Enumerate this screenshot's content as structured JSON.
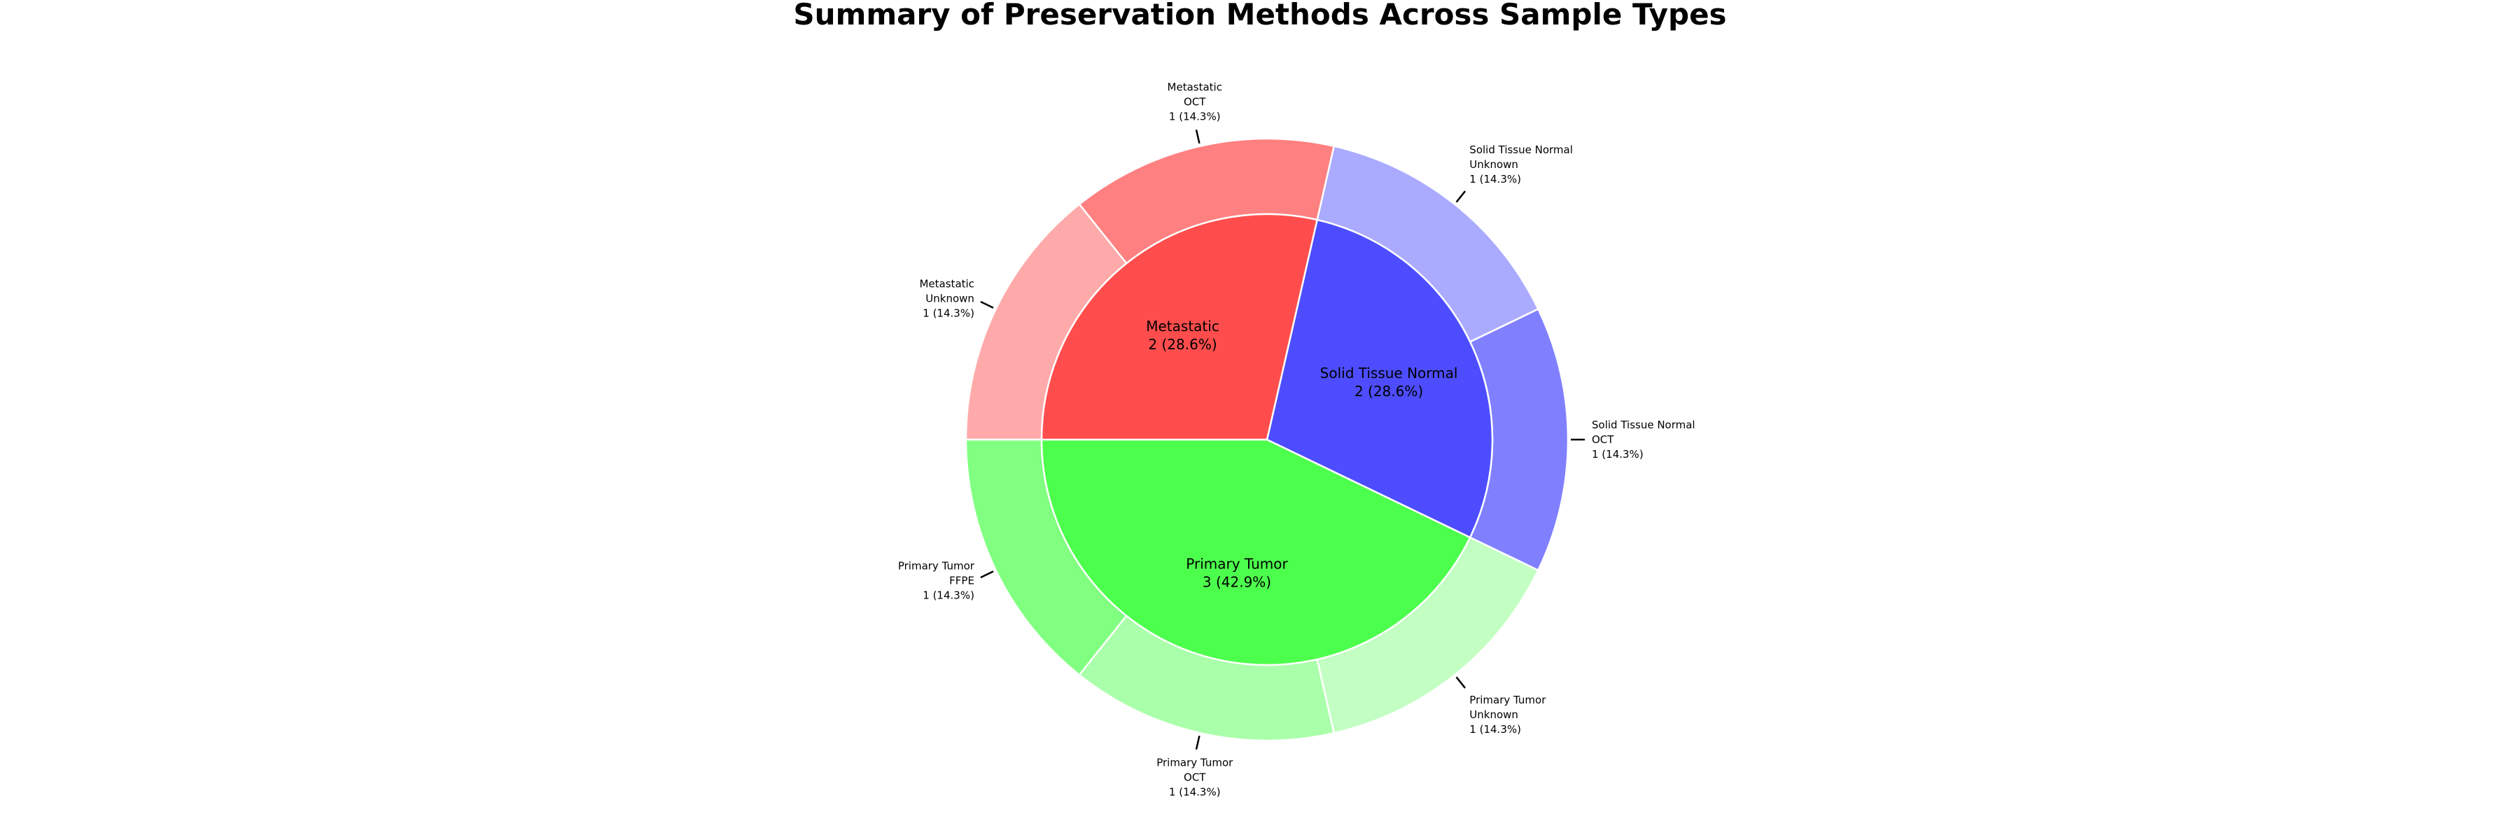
{
  "chart_data": {
    "type": "pie",
    "title": "Summary of Preservation Methods Across Sample Types",
    "total": 7,
    "inner": [
      {
        "name": "Primary Tumor",
        "count": 3,
        "percent": "42.9%",
        "color": "#4dff4d"
      },
      {
        "name": "Solid Tissue Normal",
        "count": 2,
        "percent": "28.6%",
        "color": "#4d4dff"
      },
      {
        "name": "Metastatic",
        "count": 2,
        "percent": "28.6%",
        "color": "#ff4d4d"
      }
    ],
    "outer": [
      {
        "group": "Primary Tumor",
        "method": "FFPE",
        "count": 1,
        "percent": "14.3%",
        "color": "#80ff80"
      },
      {
        "group": "Primary Tumor",
        "method": "OCT",
        "count": 1,
        "percent": "14.3%",
        "color": "#aaffaa"
      },
      {
        "group": "Primary Tumor",
        "method": "Unknown",
        "count": 1,
        "percent": "14.3%",
        "color": "#c3ffc3"
      },
      {
        "group": "Solid Tissue Normal",
        "method": "OCT",
        "count": 1,
        "percent": "14.3%",
        "color": "#8080ff"
      },
      {
        "group": "Solid Tissue Normal",
        "method": "Unknown",
        "count": 1,
        "percent": "14.3%",
        "color": "#aaaaff"
      },
      {
        "group": "Metastatic",
        "method": "OCT",
        "count": 1,
        "percent": "14.3%",
        "color": "#ff8080"
      },
      {
        "group": "Metastatic",
        "method": "Unknown",
        "count": 1,
        "percent": "14.3%",
        "color": "#ffaaaa"
      }
    ]
  }
}
